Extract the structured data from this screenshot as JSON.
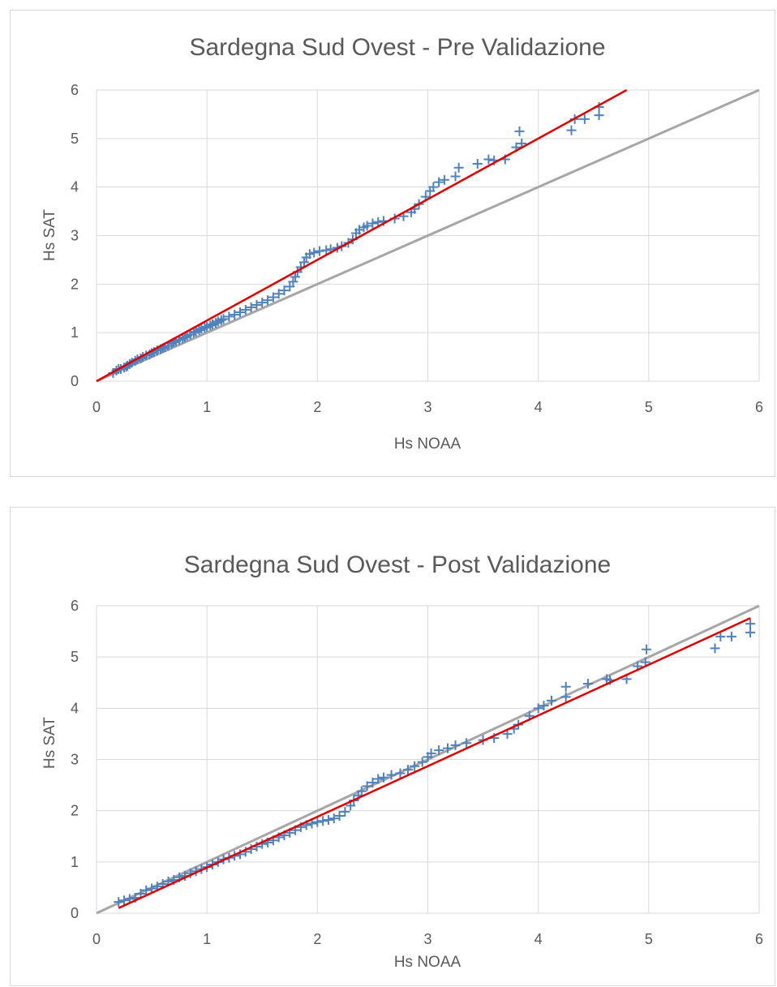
{
  "chart_data": [
    {
      "type": "scatter",
      "title": "Sardegna Sud Ovest - Pre Validazione",
      "xlabel": "Hs NOAA",
      "ylabel": "Hs SAT",
      "xlim": [
        0,
        6
      ],
      "ylim": [
        0,
        6
      ],
      "xticks": [
        "0",
        "1",
        "2",
        "3",
        "4",
        "5",
        "6"
      ],
      "yticks": [
        "0",
        "1",
        "2",
        "3",
        "4",
        "5",
        "6"
      ],
      "grid": true,
      "marker": "+",
      "colors": {
        "points": "#4f81bd",
        "fit": "#e00000",
        "identity": "#a6a6a6",
        "grid": "#d9d9d9"
      },
      "series": [
        {
          "points": [
            [
              0.15,
              0.17
            ],
            [
              0.18,
              0.22
            ],
            [
              0.2,
              0.25
            ],
            [
              0.22,
              0.25
            ],
            [
              0.25,
              0.28
            ],
            [
              0.27,
              0.3
            ],
            [
              0.28,
              0.32
            ],
            [
              0.3,
              0.35
            ],
            [
              0.32,
              0.38
            ],
            [
              0.35,
              0.42
            ],
            [
              0.37,
              0.45
            ],
            [
              0.4,
              0.47
            ],
            [
              0.42,
              0.5
            ],
            [
              0.45,
              0.53
            ],
            [
              0.48,
              0.55
            ],
            [
              0.5,
              0.58
            ],
            [
              0.52,
              0.6
            ],
            [
              0.55,
              0.63
            ],
            [
              0.58,
              0.66
            ],
            [
              0.6,
              0.68
            ],
            [
              0.62,
              0.7
            ],
            [
              0.65,
              0.73
            ],
            [
              0.68,
              0.77
            ],
            [
              0.7,
              0.8
            ],
            [
              0.72,
              0.82
            ],
            [
              0.75,
              0.85
            ],
            [
              0.78,
              0.88
            ],
            [
              0.8,
              0.9
            ],
            [
              0.82,
              0.93
            ],
            [
              0.85,
              0.96
            ],
            [
              0.88,
              1.0
            ],
            [
              0.9,
              1.02
            ],
            [
              0.93,
              1.05
            ],
            [
              0.95,
              1.08
            ],
            [
              0.98,
              1.1
            ],
            [
              1.0,
              1.12
            ],
            [
              1.03,
              1.15
            ],
            [
              1.05,
              1.17
            ],
            [
              1.08,
              1.2
            ],
            [
              1.1,
              1.23
            ],
            [
              1.13,
              1.26
            ],
            [
              1.15,
              1.28
            ],
            [
              1.2,
              1.33
            ],
            [
              1.25,
              1.37
            ],
            [
              1.3,
              1.42
            ],
            [
              1.35,
              1.47
            ],
            [
              1.4,
              1.52
            ],
            [
              1.45,
              1.57
            ],
            [
              1.5,
              1.62
            ],
            [
              1.55,
              1.67
            ],
            [
              1.6,
              1.73
            ],
            [
              1.65,
              1.8
            ],
            [
              1.7,
              1.87
            ],
            [
              1.75,
              1.95
            ],
            [
              1.78,
              2.05
            ],
            [
              1.8,
              2.15
            ],
            [
              1.82,
              2.25
            ],
            [
              1.85,
              2.35
            ],
            [
              1.88,
              2.45
            ],
            [
              1.9,
              2.55
            ],
            [
              1.93,
              2.62
            ],
            [
              1.97,
              2.65
            ],
            [
              2.02,
              2.68
            ],
            [
              2.08,
              2.7
            ],
            [
              2.12,
              2.72
            ],
            [
              2.18,
              2.75
            ],
            [
              2.22,
              2.78
            ],
            [
              2.28,
              2.85
            ],
            [
              2.32,
              2.92
            ],
            [
              2.35,
              3.05
            ],
            [
              2.38,
              3.12
            ],
            [
              2.42,
              3.17
            ],
            [
              2.45,
              3.2
            ],
            [
              2.5,
              3.25
            ],
            [
              2.55,
              3.28
            ],
            [
              2.6,
              3.3
            ],
            [
              2.7,
              3.35
            ],
            [
              2.78,
              3.4
            ],
            [
              2.85,
              3.48
            ],
            [
              2.88,
              3.55
            ],
            [
              2.92,
              3.65
            ],
            [
              2.98,
              3.8
            ],
            [
              3.02,
              3.92
            ],
            [
              3.05,
              4.0
            ],
            [
              3.1,
              4.1
            ],
            [
              3.15,
              4.15
            ],
            [
              3.25,
              4.22
            ],
            [
              3.28,
              4.4
            ],
            [
              3.45,
              4.48
            ],
            [
              3.55,
              4.57
            ],
            [
              3.6,
              4.55
            ],
            [
              3.7,
              4.57
            ],
            [
              3.8,
              4.82
            ],
            [
              3.85,
              4.9
            ],
            [
              3.83,
              5.15
            ],
            [
              4.3,
              5.17
            ],
            [
              4.33,
              5.4
            ],
            [
              4.42,
              5.4
            ],
            [
              4.55,
              5.48
            ],
            [
              4.55,
              5.65
            ]
          ]
        }
      ],
      "fit_line": {
        "x": [
          0,
          4.8
        ],
        "y": [
          0,
          6.0
        ]
      },
      "identity_line": {
        "x": [
          0,
          6
        ],
        "y": [
          0,
          6
        ]
      }
    },
    {
      "type": "scatter",
      "title": "Sardegna Sud Ovest - Post Validazione",
      "xlabel": "Hs NOAA",
      "ylabel": "Hs SAT",
      "xlim": [
        0,
        6
      ],
      "ylim": [
        0,
        6
      ],
      "xticks": [
        "0",
        "1",
        "2",
        "3",
        "4",
        "5",
        "6"
      ],
      "yticks": [
        "0",
        "1",
        "2",
        "3",
        "4",
        "5",
        "6"
      ],
      "grid": true,
      "marker": "+",
      "colors": {
        "points": "#4f81bd",
        "fit": "#e00000",
        "identity": "#a6a6a6",
        "grid": "#d9d9d9"
      },
      "series": [
        {
          "points": [
            [
              0.2,
              0.22
            ],
            [
              0.25,
              0.25
            ],
            [
              0.3,
              0.28
            ],
            [
              0.35,
              0.3
            ],
            [
              0.4,
              0.38
            ],
            [
              0.45,
              0.45
            ],
            [
              0.5,
              0.48
            ],
            [
              0.55,
              0.52
            ],
            [
              0.6,
              0.57
            ],
            [
              0.65,
              0.62
            ],
            [
              0.7,
              0.65
            ],
            [
              0.75,
              0.7
            ],
            [
              0.8,
              0.73
            ],
            [
              0.85,
              0.78
            ],
            [
              0.9,
              0.82
            ],
            [
              0.95,
              0.86
            ],
            [
              1.0,
              0.9
            ],
            [
              1.05,
              0.95
            ],
            [
              1.1,
              1.0
            ],
            [
              1.15,
              1.05
            ],
            [
              1.2,
              1.08
            ],
            [
              1.25,
              1.12
            ],
            [
              1.3,
              1.15
            ],
            [
              1.35,
              1.2
            ],
            [
              1.4,
              1.25
            ],
            [
              1.45,
              1.3
            ],
            [
              1.5,
              1.35
            ],
            [
              1.55,
              1.38
            ],
            [
              1.6,
              1.42
            ],
            [
              1.65,
              1.48
            ],
            [
              1.7,
              1.52
            ],
            [
              1.75,
              1.57
            ],
            [
              1.8,
              1.62
            ],
            [
              1.85,
              1.68
            ],
            [
              1.9,
              1.72
            ],
            [
              1.95,
              1.75
            ],
            [
              2.0,
              1.78
            ],
            [
              2.05,
              1.8
            ],
            [
              2.1,
              1.82
            ],
            [
              2.15,
              1.85
            ],
            [
              2.2,
              1.9
            ],
            [
              2.25,
              1.98
            ],
            [
              2.3,
              2.1
            ],
            [
              2.33,
              2.2
            ],
            [
              2.37,
              2.3
            ],
            [
              2.4,
              2.38
            ],
            [
              2.45,
              2.48
            ],
            [
              2.5,
              2.55
            ],
            [
              2.55,
              2.62
            ],
            [
              2.6,
              2.65
            ],
            [
              2.67,
              2.7
            ],
            [
              2.75,
              2.73
            ],
            [
              2.82,
              2.8
            ],
            [
              2.88,
              2.87
            ],
            [
              2.95,
              2.95
            ],
            [
              3.0,
              3.05
            ],
            [
              3.03,
              3.12
            ],
            [
              3.1,
              3.18
            ],
            [
              3.18,
              3.22
            ],
            [
              3.25,
              3.28
            ],
            [
              3.35,
              3.32
            ],
            [
              3.5,
              3.38
            ],
            [
              3.6,
              3.42
            ],
            [
              3.72,
              3.5
            ],
            [
              3.78,
              3.6
            ],
            [
              3.82,
              3.68
            ],
            [
              3.92,
              3.85
            ],
            [
              4.0,
              4.0
            ],
            [
              4.05,
              4.05
            ],
            [
              4.12,
              4.15
            ],
            [
              4.25,
              4.22
            ],
            [
              4.25,
              4.42
            ],
            [
              4.45,
              4.48
            ],
            [
              4.62,
              4.57
            ],
            [
              4.65,
              4.55
            ],
            [
              4.8,
              4.57
            ],
            [
              4.9,
              4.82
            ],
            [
              4.97,
              4.9
            ],
            [
              4.98,
              5.15
            ],
            [
              5.6,
              5.17
            ],
            [
              5.65,
              5.4
            ],
            [
              5.75,
              5.4
            ],
            [
              5.92,
              5.48
            ],
            [
              5.92,
              5.65
            ]
          ]
        }
      ],
      "fit_line": {
        "x": [
          0.2,
          5.92
        ],
        "y": [
          0.1,
          5.76
        ]
      },
      "identity_line": {
        "x": [
          0,
          6
        ],
        "y": [
          0,
          6
        ]
      }
    }
  ]
}
